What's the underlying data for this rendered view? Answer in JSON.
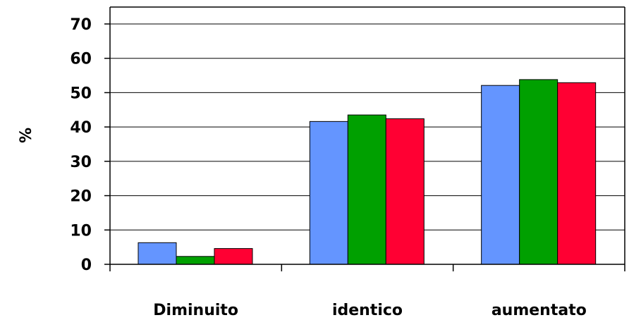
{
  "chart_data": {
    "type": "bar",
    "title": "",
    "xlabel": "",
    "ylabel": "%",
    "ylim": [
      0,
      70
    ],
    "yticks": [
      0,
      10,
      20,
      30,
      40,
      50,
      60,
      70
    ],
    "grid": true,
    "legend": "none",
    "categories": [
      "Diminuito",
      "identico",
      "aumentato"
    ],
    "series": [
      {
        "color": "#6495FF",
        "values": [
          6.3,
          41.6,
          52.1
        ]
      },
      {
        "color": "#00A000",
        "values": [
          2.3,
          43.5,
          53.8
        ]
      },
      {
        "color": "#FF0033",
        "values": [
          4.6,
          42.4,
          52.9
        ]
      }
    ]
  }
}
